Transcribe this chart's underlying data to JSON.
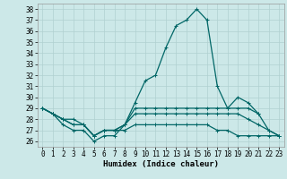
{
  "xlabel": "Humidex (Indice chaleur)",
  "background_color": "#cce8e8",
  "grid_color": "#b0d0d0",
  "line_color": "#006666",
  "xlim": [
    -0.5,
    23.5
  ],
  "ylim": [
    25.5,
    38.5
  ],
  "yticks": [
    26,
    27,
    28,
    29,
    30,
    31,
    32,
    33,
    34,
    35,
    36,
    37,
    38
  ],
  "xticks": [
    0,
    1,
    2,
    3,
    4,
    5,
    6,
    7,
    8,
    9,
    10,
    11,
    12,
    13,
    14,
    15,
    16,
    17,
    18,
    19,
    20,
    21,
    22,
    23
  ],
  "series": [
    [
      29.0,
      28.5,
      27.5,
      27.0,
      27.0,
      26.0,
      26.5,
      26.5,
      27.5,
      29.5,
      31.5,
      32.0,
      34.5,
      36.5,
      37.0,
      38.0,
      37.0,
      31.0,
      29.0,
      30.0,
      29.5,
      28.5,
      null,
      null
    ],
    [
      29.0,
      28.5,
      28.0,
      27.5,
      27.5,
      26.5,
      27.0,
      27.0,
      27.5,
      29.0,
      29.0,
      29.0,
      29.0,
      29.0,
      29.0,
      29.0,
      29.0,
      29.0,
      29.0,
      29.0,
      29.0,
      28.5,
      27.0,
      26.5
    ],
    [
      29.0,
      28.5,
      28.0,
      27.5,
      27.5,
      26.5,
      27.0,
      27.0,
      27.5,
      28.5,
      28.5,
      28.5,
      28.5,
      28.5,
      28.5,
      28.5,
      28.5,
      28.5,
      28.5,
      28.5,
      28.0,
      27.5,
      27.0,
      26.5
    ],
    [
      29.0,
      28.5,
      28.0,
      28.0,
      27.5,
      26.5,
      27.0,
      27.0,
      27.0,
      27.5,
      27.5,
      27.5,
      27.5,
      27.5,
      27.5,
      27.5,
      27.5,
      27.0,
      27.0,
      26.5,
      26.5,
      26.5,
      26.5,
      26.5
    ]
  ],
  "tick_fontsize": 5.5,
  "xlabel_fontsize": 6.5,
  "marker_size": 3,
  "linewidth": 0.9
}
